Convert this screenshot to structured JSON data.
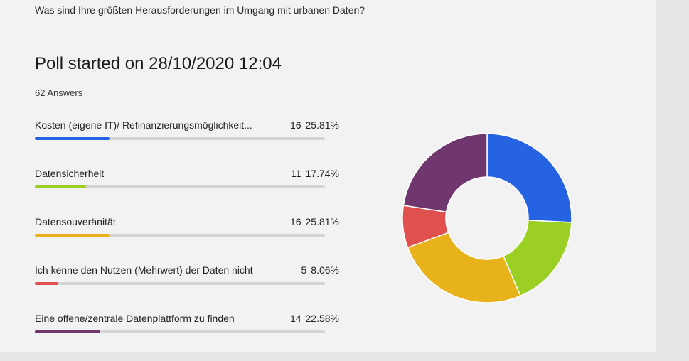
{
  "question": "Was sind Ihre größten Herausforderungen im Umgang mit urbanen Daten?",
  "poll_title": "Poll started on 28/10/2020 12:04",
  "answers_label": "62 Answers",
  "options": [
    {
      "label": "Kosten (eigene IT)/ Refinanzierungsmöglichkeit...",
      "count": "16",
      "percent": "25.81%",
      "fraction": 0.2581,
      "color": "#2563e3"
    },
    {
      "label": "Datensicherheit",
      "count": "11",
      "percent": "17.74%",
      "fraction": 0.1774,
      "color": "#9ccf24"
    },
    {
      "label": "Datensouveränität",
      "count": "16",
      "percent": "25.81%",
      "fraction": 0.2581,
      "color": "#e8b21a"
    },
    {
      "label": "Ich kenne den Nutzen (Mehrwert) der Daten nicht",
      "count": "5",
      "percent": "8.06%",
      "fraction": 0.0806,
      "color": "#e0504e"
    },
    {
      "label": "Eine offene/zentrale Datenplattform zu finden",
      "count": "14",
      "percent": "22.58%",
      "fraction": 0.2258,
      "color": "#6f376d"
    }
  ],
  "chart_data": {
    "type": "pie",
    "categories": [
      "Kosten (eigene IT)/ Refinanzierungsmöglichkeit...",
      "Datensicherheit",
      "Datensouveränität",
      "Ich kenne den Nutzen (Mehrwert) der Daten nicht",
      "Eine offene/zentrale Datenplattform zu finden"
    ],
    "values": [
      16,
      11,
      16,
      5,
      14
    ],
    "colors": [
      "#2563e3",
      "#9ccf24",
      "#e8b21a",
      "#e0504e",
      "#6f376d"
    ],
    "style": "donut"
  }
}
